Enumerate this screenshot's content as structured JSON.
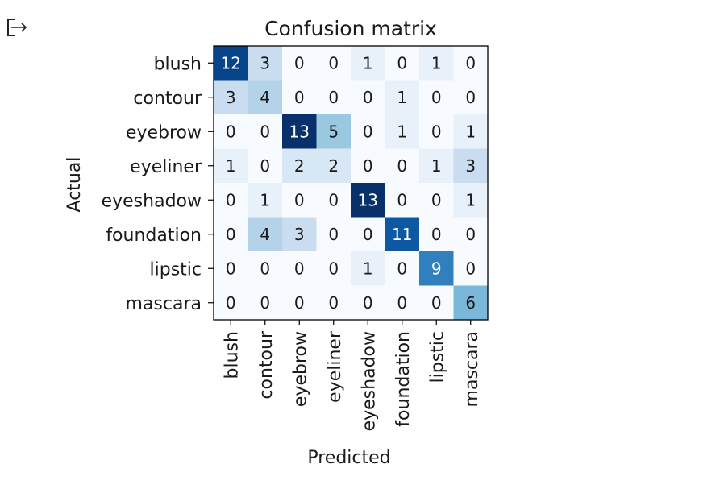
{
  "output_icon": "output-redirect-icon",
  "chart_data": {
    "type": "heatmap",
    "title": "Confusion matrix",
    "xlabel": "Predicted",
    "ylabel": "Actual",
    "labels": [
      "blush",
      "contour",
      "eyebrow",
      "eyeliner",
      "eyeshadow",
      "foundation",
      "lipstic",
      "mascara"
    ],
    "matrix": [
      [
        12,
        3,
        0,
        0,
        1,
        0,
        1,
        0
      ],
      [
        3,
        4,
        0,
        0,
        0,
        1,
        0,
        0
      ],
      [
        0,
        0,
        13,
        5,
        0,
        1,
        0,
        1
      ],
      [
        1,
        0,
        2,
        2,
        0,
        0,
        1,
        3
      ],
      [
        0,
        1,
        0,
        0,
        13,
        0,
        0,
        1
      ],
      [
        0,
        4,
        3,
        0,
        0,
        11,
        0,
        0
      ],
      [
        0,
        0,
        0,
        0,
        1,
        0,
        9,
        0
      ],
      [
        0,
        0,
        0,
        0,
        0,
        0,
        0,
        6
      ]
    ],
    "colormap": "Blues",
    "vmin": 0,
    "vmax": 13
  }
}
